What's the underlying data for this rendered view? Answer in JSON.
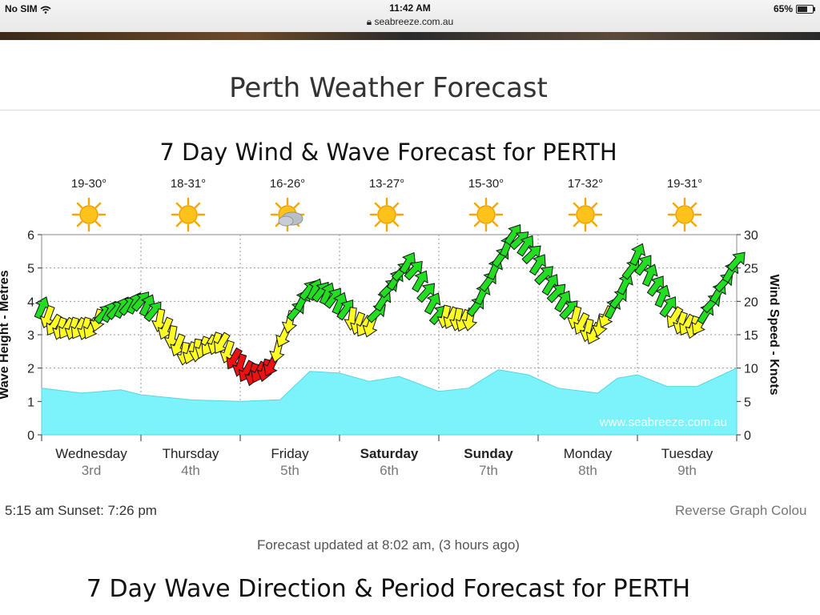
{
  "status": {
    "carrier": "No SIM",
    "time": "11:42 AM",
    "url": "seabreeze.com.au",
    "battery": "65%"
  },
  "page": {
    "title": "Perth Weather Forecast",
    "sun_times": "5:15 am  Sunset: 7:26 pm",
    "reverse_link": "Reverse Graph Colou",
    "updated": "Forecast updated at 8:02 am, (3 hours ago)",
    "section2_title": "7 Day Wave Direction & Period Forecast for PERTH"
  },
  "chart_data": {
    "type": "area",
    "title": "7 Day Wind & Wave Forecast for PERTH",
    "ylabel": "Wave Height - Metres",
    "y2label": "Wind Speed - Knots",
    "ylim": [
      0,
      6
    ],
    "y2lim": [
      0,
      30
    ],
    "yticks": [
      "0",
      "1",
      "2",
      "3",
      "4",
      "5",
      "6"
    ],
    "y2ticks": [
      "0",
      "5",
      "10",
      "15",
      "20",
      "25",
      "30"
    ],
    "watermark": "www.seabreeze.com.au",
    "days": [
      {
        "name": "Wednesday",
        "date": "3rd",
        "temp": "19-30°",
        "icon": "sun-icon",
        "bold": false
      },
      {
        "name": "Thursday",
        "date": "4th",
        "temp": "18-31°",
        "icon": "sun-icon",
        "bold": false
      },
      {
        "name": "Friday",
        "date": "5th",
        "temp": "16-26°",
        "icon": "partly-cloudy-icon",
        "bold": false
      },
      {
        "name": "Saturday",
        "date": "6th",
        "temp": "13-27°",
        "icon": "sun-icon",
        "bold": true
      },
      {
        "name": "Sunday",
        "date": "7th",
        "temp": "15-30°",
        "icon": "sun-icon",
        "bold": true
      },
      {
        "name": "Monday",
        "date": "8th",
        "temp": "17-32°",
        "icon": "sun-icon",
        "bold": false
      },
      {
        "name": "Tuesday",
        "date": "9th",
        "temp": "19-31°",
        "icon": "sun-icon",
        "bold": false
      }
    ],
    "wave": {
      "name": "Wave Height",
      "x_days": [
        0,
        0.4,
        0.8,
        1.0,
        1.5,
        2.0,
        2.4,
        2.7,
        3.0,
        3.3,
        3.6,
        4.0,
        4.3,
        4.6,
        4.9,
        5.2,
        5.6,
        5.8,
        6.0,
        6.3,
        6.6,
        7.0
      ],
      "values": [
        1.4,
        1.25,
        1.35,
        1.2,
        1.05,
        1.0,
        1.05,
        1.9,
        1.85,
        1.6,
        1.75,
        1.3,
        1.4,
        1.95,
        1.8,
        1.4,
        1.25,
        1.7,
        1.8,
        1.45,
        1.45,
        2.0
      ]
    },
    "wind": {
      "name": "Wind Speed (knots)",
      "x_days": [
        0,
        0.15,
        0.3,
        0.5,
        0.6,
        0.8,
        1.0,
        1.1,
        1.3,
        1.45,
        1.6,
        1.8,
        1.9,
        2.1,
        2.3,
        2.5,
        2.7,
        2.9,
        3.05,
        3.15,
        3.3,
        3.5,
        3.7,
        3.85,
        4.0,
        4.3,
        4.6,
        4.75,
        4.9,
        5.1,
        5.35,
        5.55,
        5.8,
        6.0,
        6.2,
        6.4,
        6.6,
        6.8,
        7.0
      ],
      "values": [
        19,
        16,
        16,
        16,
        18,
        19,
        20,
        19,
        15,
        12,
        13,
        14,
        12,
        9,
        10,
        17,
        22,
        21,
        19,
        17,
        16,
        22,
        26,
        22,
        18,
        17,
        26,
        30,
        28,
        23,
        18,
        15,
        20,
        27,
        22,
        17,
        16,
        21,
        26
      ],
      "colors": {
        "green": "#22dd22",
        "yellow": "#ffff22",
        "red": "#ee1111"
      }
    }
  }
}
